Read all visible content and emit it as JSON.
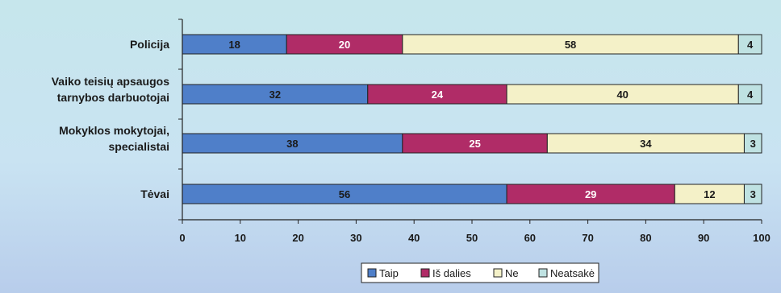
{
  "chart_data": {
    "type": "bar",
    "orientation": "horizontal",
    "stacked": true,
    "categories": [
      [
        "Policija"
      ],
      [
        "Vaiko teisių apsaugos",
        "tarnybos darbuotojai"
      ],
      [
        "Mokyklos mokytojai,",
        "specialistai"
      ],
      [
        "Tėvai"
      ]
    ],
    "series": [
      {
        "name": "Taip",
        "color": "#4f7fc9",
        "label_color": "#1a1a1a",
        "values": [
          18,
          32,
          38,
          56
        ]
      },
      {
        "name": "Iš dalies",
        "color": "#b02c67",
        "label_color": "#ffffff",
        "values": [
          20,
          24,
          25,
          29
        ]
      },
      {
        "name": "Ne",
        "color": "#f4f1c8",
        "label_color": "#1a1a1a",
        "values": [
          58,
          40,
          34,
          12
        ]
      },
      {
        "name": "Neatsakė",
        "color": "#bfe2e2",
        "label_color": "#1a1a1a",
        "values": [
          4,
          4,
          3,
          3
        ]
      }
    ],
    "xlim": [
      0,
      100
    ],
    "xticks": [
      0,
      10,
      20,
      30,
      40,
      50,
      60,
      70,
      80,
      90,
      100
    ],
    "grid": false,
    "legend_position": "bottom-center"
  }
}
